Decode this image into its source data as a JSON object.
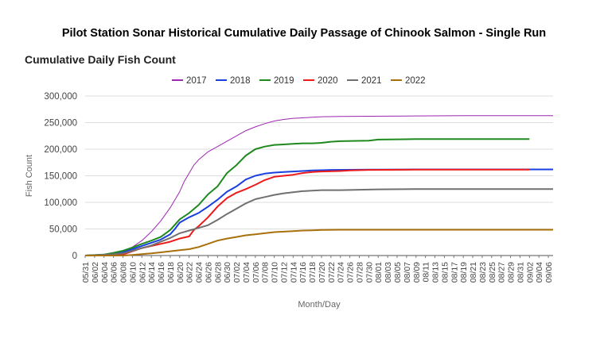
{
  "title": "Pilot Station Sonar Historical Cumulative Daily Passage of Chinook Salmon - Single Run",
  "chart_data": {
    "type": "line",
    "title": "Cumulative Daily Fish Count",
    "xlabel": "Month/Day",
    "ylabel": "Fish Count",
    "ylim": [
      0,
      300000
    ],
    "yticks": [
      0,
      50000,
      100000,
      150000,
      200000,
      250000,
      300000
    ],
    "ytick_labels": [
      "0",
      "50,000",
      "100,000",
      "150,000",
      "200,000",
      "250,000",
      "300,000"
    ],
    "x_tick_labels": [
      "05/31",
      "06/02",
      "06/04",
      "06/06",
      "06/08",
      "06/10",
      "06/12",
      "06/14",
      "06/16",
      "06/18",
      "06/20",
      "06/22",
      "06/24",
      "06/26",
      "06/28",
      "06/30",
      "07/02",
      "07/04",
      "07/06",
      "07/08",
      "07/10",
      "07/12",
      "07/14",
      "07/16",
      "07/18",
      "07/20",
      "07/22",
      "07/24",
      "07/26",
      "07/28",
      "07/30",
      "08/01",
      "08/03",
      "08/05",
      "08/07",
      "08/09",
      "08/11",
      "08/13",
      "08/15",
      "08/17",
      "08/19",
      "08/21",
      "08/23",
      "08/25",
      "08/27",
      "08/29",
      "08/31",
      "09/02",
      "09/04",
      "09/06"
    ],
    "x_range_days": [
      0,
      99
    ],
    "legend_position": "top",
    "grid": true,
    "series": [
      {
        "name": "2017",
        "color": "#9c27b0",
        "x": [
          0,
          4,
          8,
          10,
          12,
          14,
          16,
          18,
          20,
          21,
          22,
          23,
          24,
          26,
          28,
          30,
          32,
          34,
          36,
          38,
          40,
          42,
          44,
          46,
          48,
          50,
          54,
          60,
          70,
          80,
          90,
          99
        ],
        "y": [
          0,
          1500,
          9000,
          16000,
          28000,
          45000,
          65000,
          90000,
          120000,
          140000,
          155000,
          170000,
          180000,
          195000,
          205000,
          215000,
          225000,
          235000,
          242000,
          248000,
          253000,
          256000,
          258000,
          259000,
          260000,
          261000,
          261500,
          262000,
          262500,
          263000,
          263000,
          263000
        ]
      },
      {
        "name": "2018",
        "color": "#1a3fe0",
        "x": [
          0,
          4,
          8,
          10,
          12,
          14,
          16,
          18,
          19,
          20,
          22,
          24,
          26,
          28,
          30,
          32,
          34,
          36,
          38,
          40,
          42,
          44,
          46,
          48,
          50,
          52,
          60,
          70,
          80,
          90,
          99
        ],
        "y": [
          0,
          1500,
          6000,
          12000,
          18000,
          24000,
          30000,
          40000,
          50000,
          62000,
          72000,
          80000,
          92000,
          105000,
          120000,
          130000,
          143000,
          150000,
          154000,
          156000,
          157000,
          158000,
          159000,
          160000,
          160500,
          161000,
          161500,
          162000,
          162000,
          162000,
          162000
        ]
      },
      {
        "name": "2019",
        "color": "#1e8a1e",
        "x": [
          0,
          4,
          6,
          8,
          10,
          12,
          14,
          16,
          18,
          20,
          22,
          24,
          26,
          28,
          30,
          32,
          34,
          36,
          38,
          40,
          42,
          44,
          46,
          48,
          50,
          52,
          54,
          60,
          62,
          70,
          80,
          90,
          94
        ],
        "y": [
          0,
          2000,
          5000,
          9000,
          15000,
          22000,
          28000,
          35000,
          48000,
          68000,
          80000,
          95000,
          115000,
          130000,
          155000,
          170000,
          188000,
          200000,
          205000,
          208000,
          209000,
          210000,
          211000,
          211000,
          212000,
          214000,
          215000,
          216000,
          218000,
          219000,
          219000,
          219000,
          219000
        ]
      },
      {
        "name": "2020",
        "color": "#ee1a1a",
        "x": [
          0,
          6,
          8,
          10,
          12,
          14,
          16,
          18,
          20,
          22,
          23,
          24,
          26,
          28,
          30,
          32,
          34,
          36,
          38,
          40,
          42,
          44,
          46,
          48,
          50,
          54,
          56,
          60,
          70,
          80,
          90,
          94
        ],
        "y": [
          0,
          0,
          2000,
          8000,
          14000,
          18000,
          22000,
          26000,
          32000,
          36000,
          48000,
          55000,
          72000,
          92000,
          108000,
          118000,
          125000,
          133000,
          142000,
          148000,
          150000,
          152000,
          155000,
          157000,
          158000,
          159000,
          160000,
          161000,
          161500,
          161500,
          161500,
          161500
        ]
      },
      {
        "name": "2021",
        "color": "#707070",
        "x": [
          0,
          4,
          8,
          10,
          12,
          14,
          16,
          18,
          20,
          22,
          24,
          26,
          28,
          30,
          32,
          34,
          36,
          38,
          40,
          42,
          44,
          46,
          48,
          50,
          54,
          60,
          62,
          70,
          80,
          90,
          99
        ],
        "y": [
          0,
          1500,
          4000,
          9000,
          14000,
          19000,
          26000,
          33000,
          42000,
          47000,
          52000,
          57000,
          67000,
          78000,
          88000,
          98000,
          106000,
          110000,
          114000,
          117000,
          119000,
          121000,
          122000,
          123000,
          123000,
          124000,
          124500,
          125000,
          125000,
          125000,
          125000
        ]
      },
      {
        "name": "2022",
        "color": "#a8700a",
        "x": [
          0,
          8,
          10,
          12,
          14,
          16,
          18,
          20,
          22,
          24,
          26,
          28,
          30,
          32,
          34,
          36,
          38,
          40,
          42,
          44,
          46,
          48,
          50,
          54,
          60,
          70,
          80,
          90,
          99
        ],
        "y": [
          0,
          0,
          1000,
          2500,
          4000,
          6000,
          8000,
          10000,
          12000,
          16000,
          22000,
          28000,
          32000,
          35000,
          38000,
          40000,
          42000,
          44000,
          45000,
          46000,
          47000,
          47500,
          48000,
          48500,
          48500,
          48500,
          48500,
          48500,
          48500
        ]
      }
    ]
  }
}
